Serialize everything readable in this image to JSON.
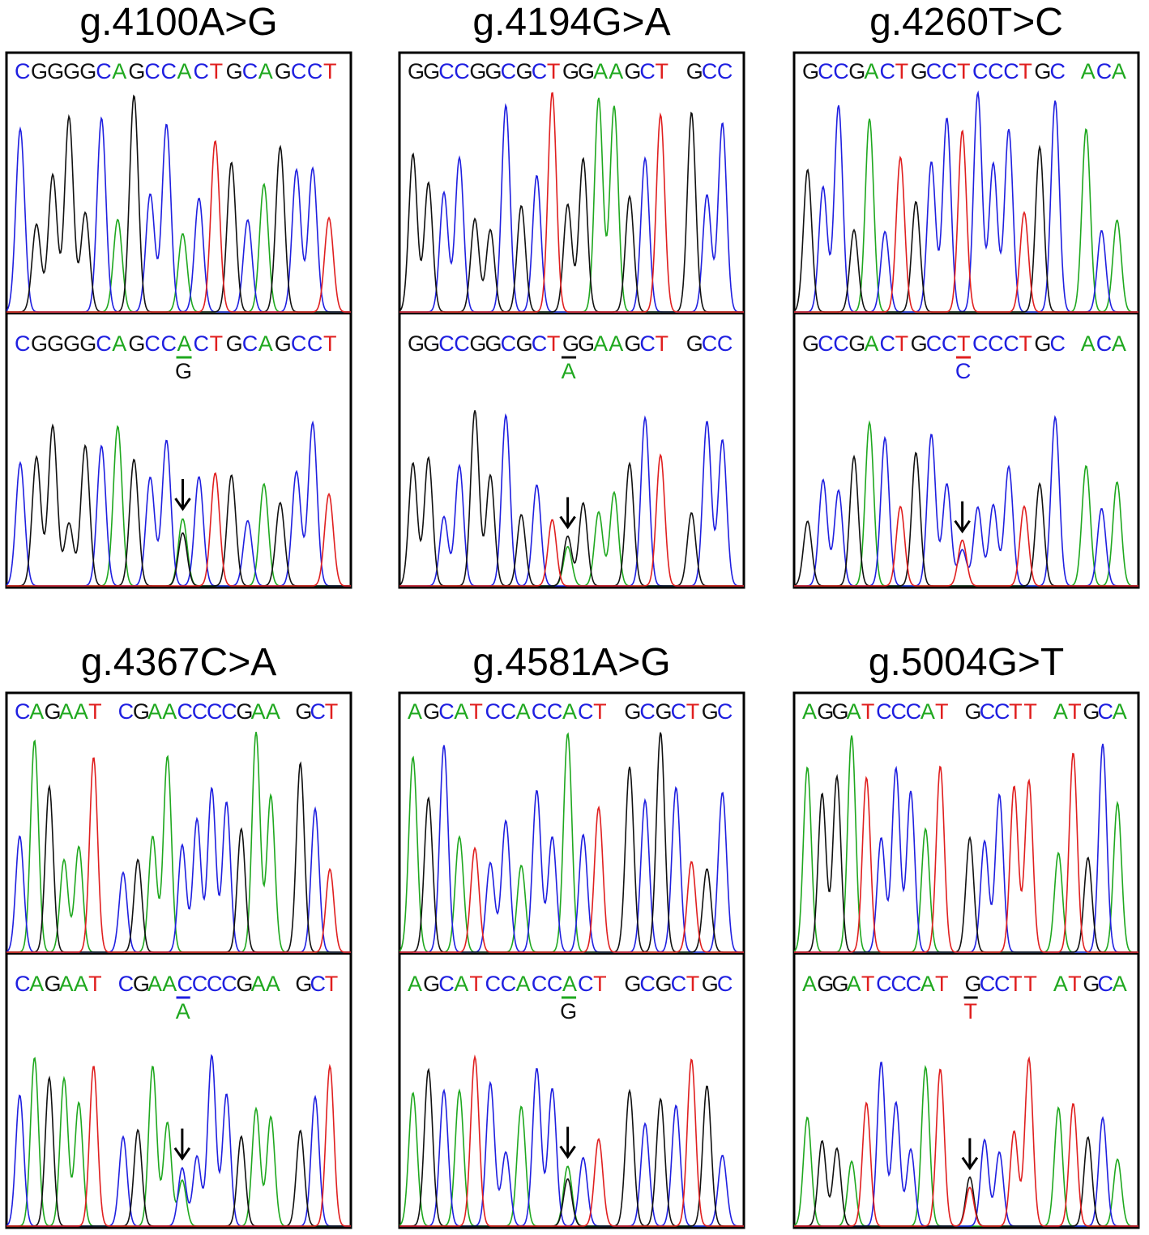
{
  "base_colors": {
    "A": "#1fa81f",
    "C": "#1f1fe0",
    "G": "#111111",
    "T": "#e01f1f"
  },
  "panels": [
    {
      "title": "g.4100A>G",
      "reference": "CGGGGCAGCCACTGCAGCCT",
      "mutant": {
        "before": "CGGGGCAGCC",
        "base": "A",
        "after": "CTGCAGCCT",
        "alt": "G"
      }
    },
    {
      "title": "g.4194G>A",
      "reference": "GGCCGGCGCTGGAAGCT GCC",
      "mutant": {
        "before": "GGCCGGCGCT",
        "base": "G",
        "after": "GAAGCT GCC",
        "alt": "A"
      }
    },
    {
      "title": "g.4260T>C",
      "reference": "GCCGACTGCCTCCCTGC ACA",
      "mutant": {
        "before": "GCCGACTGCC",
        "base": "T",
        "after": "CCCTGC ACA",
        "alt": "C"
      }
    },
    {
      "title": "g.4367C>A",
      "reference": "CAGAAT CGAACCCCGAA GCT",
      "mutant": {
        "before": "CAGAAT CGAA",
        "base": "C",
        "after": "CCCGAA GCT",
        "alt": "A"
      }
    },
    {
      "title": "g.4581A>G",
      "reference": "AGCATCCACCACT GCGCTGC",
      "mutant": {
        "before": "AGCATCCACC",
        "base": "A",
        "after": "CT GCGCTGC",
        "alt": "G"
      }
    },
    {
      "title": "g.5004G>T",
      "reference": "AGGATCCCAT GCCTT ATGCA",
      "mutant": {
        "before": "AGGATCCCAT ",
        "base": "G",
        "after": "CCTT ATGCA",
        "alt": "T"
      }
    }
  ]
}
